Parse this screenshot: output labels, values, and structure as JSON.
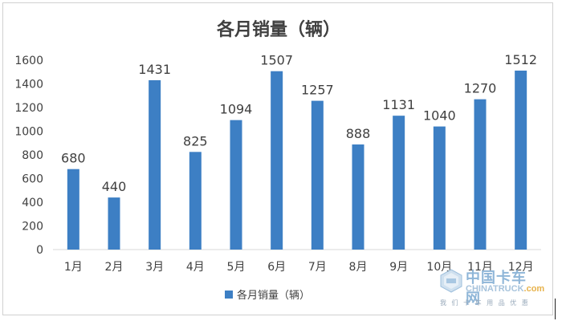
{
  "chart_data": {
    "type": "bar",
    "title": "各月销量（辆）",
    "categories": [
      "1月",
      "2月",
      "3月",
      "4月",
      "5月",
      "6月",
      "7月",
      "8月",
      "9月",
      "10月",
      "11月",
      "12月"
    ],
    "series": [
      {
        "name": "各月销量（辆）",
        "values": [
          680,
          440,
          1431,
          825,
          1094,
          1507,
          1257,
          888,
          1131,
          1040,
          1270,
          1512
        ]
      }
    ],
    "yticks": [
      "0",
      "200",
      "400",
      "600",
      "800",
      "1000",
      "1200",
      "1400",
      "1600"
    ],
    "ylim": [
      0,
      1600
    ],
    "grid": false,
    "legend": "bottom",
    "bar_color": "#3d7fc4"
  },
  "watermark": {
    "cn": "中国卡车网",
    "en": "CHINATRUCK",
    "suffix": ".com",
    "sub": "我 们 卡 车 用 品 优 惠"
  }
}
